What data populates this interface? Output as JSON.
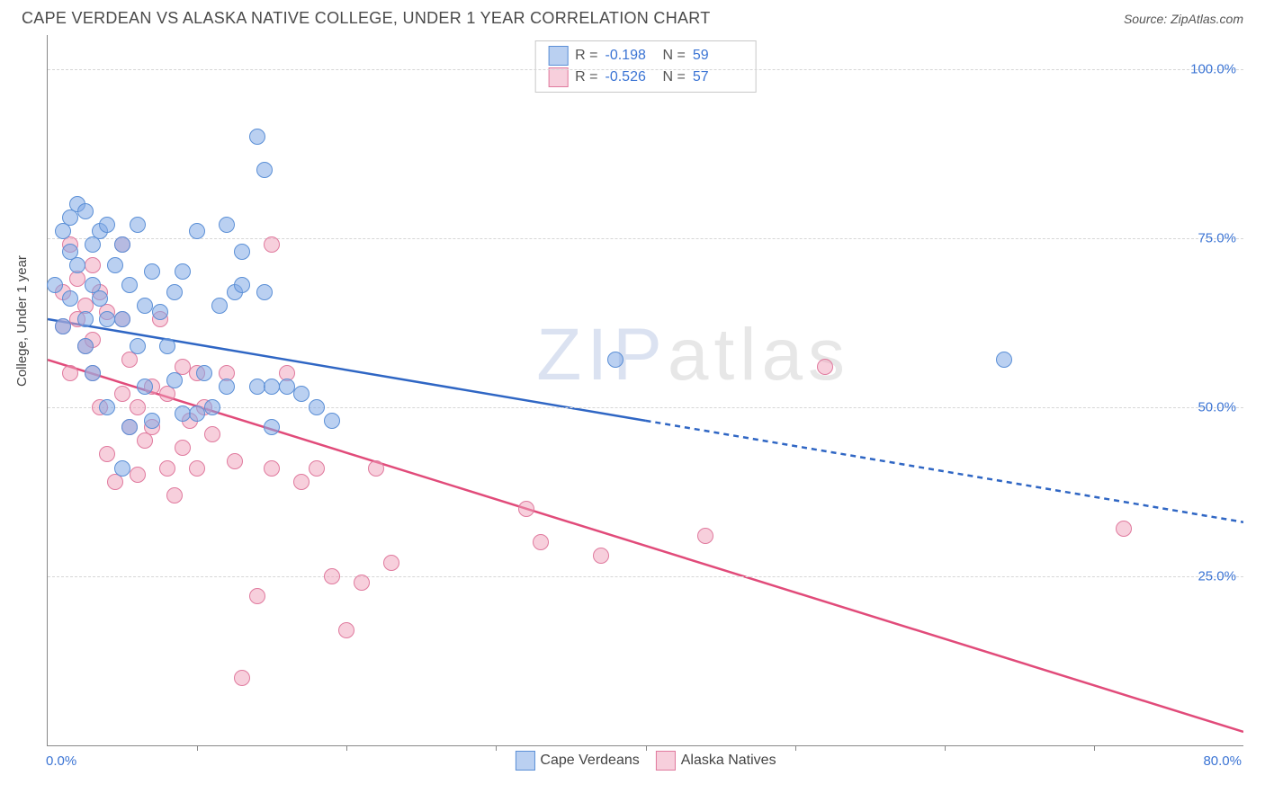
{
  "title": "CAPE VERDEAN VS ALASKA NATIVE COLLEGE, UNDER 1 YEAR CORRELATION CHART",
  "source": "Source: ZipAtlas.com",
  "ylabel": "College, Under 1 year",
  "watermark_z": "ZIP",
  "watermark_rest": "atlas",
  "chart": {
    "xlim": [
      0,
      80
    ],
    "ylim": [
      0,
      105
    ],
    "xticks_minor": [
      10,
      20,
      30,
      40,
      50,
      60,
      70
    ],
    "yticks": [
      25,
      50,
      75,
      100
    ],
    "ytick_labels": [
      "25.0%",
      "50.0%",
      "75.0%",
      "100.0%"
    ],
    "x_min_label": "0.0%",
    "x_max_label": "80.0%",
    "background": "#ffffff",
    "grid_color": "#d6d6d6",
    "axis_color": "#888888",
    "tick_label_color": "#3b74d4",
    "label_fontsize": 15,
    "marker_size": 16
  },
  "series": {
    "blue": {
      "name": "Cape Verdeans",
      "fill": "rgba(130,170,230,0.55)",
      "stroke": "#5b8fd6",
      "line_color": "#2f66c4",
      "r_value": "-0.198",
      "n_value": "59",
      "regression": {
        "x1": 0,
        "y1": 63,
        "x2_solid": 40,
        "y2_solid": 48,
        "x2_dash": 80,
        "y2_dash": 33
      },
      "points": [
        [
          0.5,
          68
        ],
        [
          1,
          76
        ],
        [
          1,
          62
        ],
        [
          1.5,
          78
        ],
        [
          1.5,
          73
        ],
        [
          1.5,
          66
        ],
        [
          2,
          71
        ],
        [
          2,
          80
        ],
        [
          2.5,
          79
        ],
        [
          2.5,
          63
        ],
        [
          2.5,
          59
        ],
        [
          3,
          74
        ],
        [
          3,
          68
        ],
        [
          3,
          55
        ],
        [
          3.5,
          76
        ],
        [
          3.5,
          66
        ],
        [
          4,
          77
        ],
        [
          4,
          63
        ],
        [
          4,
          50
        ],
        [
          4.5,
          71
        ],
        [
          5,
          63
        ],
        [
          5,
          74
        ],
        [
          5,
          41
        ],
        [
          5.5,
          68
        ],
        [
          5.5,
          47
        ],
        [
          6,
          77
        ],
        [
          6,
          59
        ],
        [
          6.5,
          65
        ],
        [
          6.5,
          53
        ],
        [
          7,
          70
        ],
        [
          7,
          48
        ],
        [
          7.5,
          64
        ],
        [
          8,
          59
        ],
        [
          8.5,
          67
        ],
        [
          8.5,
          54
        ],
        [
          9,
          49
        ],
        [
          9,
          70
        ],
        [
          10,
          76
        ],
        [
          10,
          49
        ],
        [
          10.5,
          55
        ],
        [
          11,
          50
        ],
        [
          11.5,
          65
        ],
        [
          12,
          77
        ],
        [
          12,
          53
        ],
        [
          12.5,
          67
        ],
        [
          13,
          73
        ],
        [
          13,
          68
        ],
        [
          14,
          90
        ],
        [
          14,
          53
        ],
        [
          14.5,
          85
        ],
        [
          14.5,
          67
        ],
        [
          15,
          53
        ],
        [
          15,
          47
        ],
        [
          16,
          53
        ],
        [
          17,
          52
        ],
        [
          18,
          50
        ],
        [
          19,
          48
        ],
        [
          38,
          57
        ],
        [
          64,
          57
        ]
      ]
    },
    "pink": {
      "name": "Alaska Natives",
      "fill": "rgba(240,160,185,0.5)",
      "stroke": "#e07a9e",
      "line_color": "#e14b7a",
      "r_value": "-0.526",
      "n_value": "57",
      "regression": {
        "x1": 0,
        "y1": 57,
        "x2_solid": 80,
        "y2_solid": 2
      },
      "points": [
        [
          1,
          67
        ],
        [
          1,
          62
        ],
        [
          1.5,
          74
        ],
        [
          1.5,
          55
        ],
        [
          2,
          69
        ],
        [
          2,
          63
        ],
        [
          2.5,
          65
        ],
        [
          2.5,
          59
        ],
        [
          3,
          71
        ],
        [
          3,
          60
        ],
        [
          3,
          55
        ],
        [
          3.5,
          67
        ],
        [
          3.5,
          50
        ],
        [
          4,
          64
        ],
        [
          4,
          43
        ],
        [
          4.5,
          39
        ],
        [
          5,
          74
        ],
        [
          5,
          63
        ],
        [
          5,
          52
        ],
        [
          5.5,
          47
        ],
        [
          5.5,
          57
        ],
        [
          6,
          50
        ],
        [
          6,
          40
        ],
        [
          6.5,
          45
        ],
        [
          7,
          53
        ],
        [
          7,
          47
        ],
        [
          7.5,
          63
        ],
        [
          8,
          41
        ],
        [
          8,
          52
        ],
        [
          8.5,
          37
        ],
        [
          9,
          56
        ],
        [
          9,
          44
        ],
        [
          9.5,
          48
        ],
        [
          10,
          55
        ],
        [
          10,
          41
        ],
        [
          10.5,
          50
        ],
        [
          11,
          46
        ],
        [
          12,
          55
        ],
        [
          12.5,
          42
        ],
        [
          13,
          10
        ],
        [
          14,
          22
        ],
        [
          15,
          74
        ],
        [
          15,
          41
        ],
        [
          16,
          55
        ],
        [
          17,
          39
        ],
        [
          18,
          41
        ],
        [
          19,
          25
        ],
        [
          20,
          17
        ],
        [
          21,
          24
        ],
        [
          22,
          41
        ],
        [
          23,
          27
        ],
        [
          32,
          35
        ],
        [
          33,
          30
        ],
        [
          37,
          28
        ],
        [
          44,
          31
        ],
        [
          52,
          56
        ],
        [
          72,
          32
        ]
      ]
    }
  }
}
